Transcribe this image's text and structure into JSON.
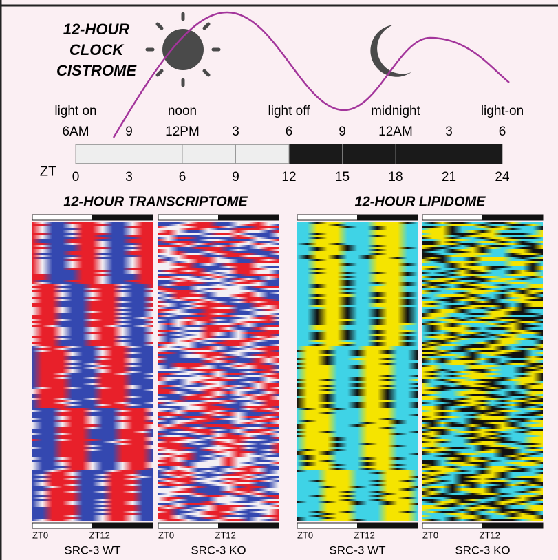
{
  "header": {
    "title_lines": [
      "12-HOUR",
      "CLOCK",
      "CISTROME"
    ]
  },
  "timeline": {
    "day_labels": [
      "light on",
      "noon",
      "light off",
      "midnight",
      "light-on"
    ],
    "clock_labels": [
      "6AM",
      "9",
      "12PM",
      "3",
      "6",
      "9",
      "12AM",
      "3",
      "6"
    ],
    "zt_label": "ZT",
    "zt_ticks": [
      0,
      3,
      6,
      9,
      12,
      15,
      18,
      21,
      24
    ]
  },
  "panels": [
    {
      "title": "12-HOUR TRANSCRIPTOME",
      "heatmaps": [
        {
          "start": "ZT0",
          "mid": "ZT12",
          "name": "SRC-3 WT"
        },
        {
          "start": "ZT0",
          "mid": "ZT12",
          "name": "SRC-3 KO"
        }
      ]
    },
    {
      "title": "12-HOUR LIPIDOME",
      "heatmaps": [
        {
          "start": "ZT0",
          "mid": "ZT12",
          "name": "SRC-3 WT"
        },
        {
          "start": "ZT0",
          "mid": "ZT12",
          "name": "SRC-3 KO"
        }
      ]
    }
  ]
}
